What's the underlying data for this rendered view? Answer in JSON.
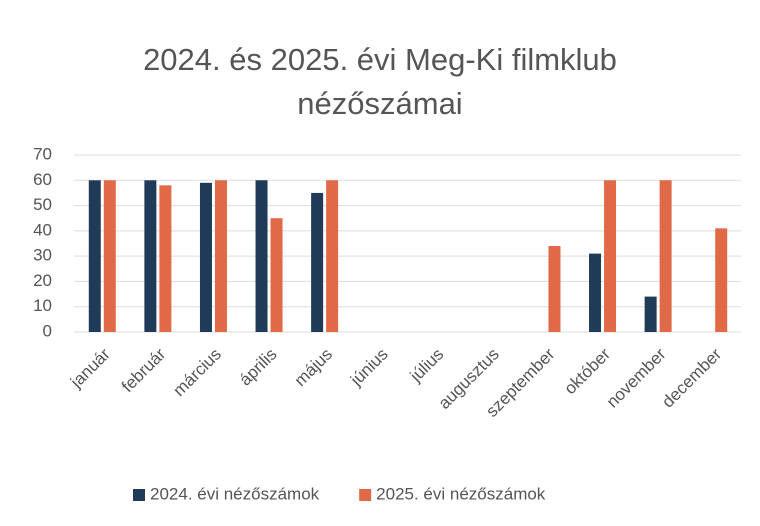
{
  "chart_data": {
    "type": "bar",
    "title": "2024. és 2025. évi Meg-Ki filmklub nézőszámai",
    "categories": [
      "január",
      "február",
      "március",
      "április",
      "május",
      "június",
      "július",
      "augusztus",
      "szeptember",
      "október",
      "november",
      "december"
    ],
    "series": [
      {
        "name": "2024. évi nézőszámok",
        "color": "#1f3b57",
        "values": [
          60,
          60,
          59,
          60,
          55,
          null,
          null,
          null,
          null,
          31,
          14,
          null
        ]
      },
      {
        "name": "2025. évi nézőszámok",
        "color": "#e06a48",
        "values": [
          60,
          58,
          60,
          45,
          60,
          null,
          null,
          null,
          34,
          60,
          60,
          41
        ]
      }
    ],
    "ylim": [
      0,
      70
    ],
    "yticks": [
      0,
      10,
      20,
      30,
      40,
      50,
      60,
      70
    ],
    "grid": true,
    "legend": "bottom"
  }
}
